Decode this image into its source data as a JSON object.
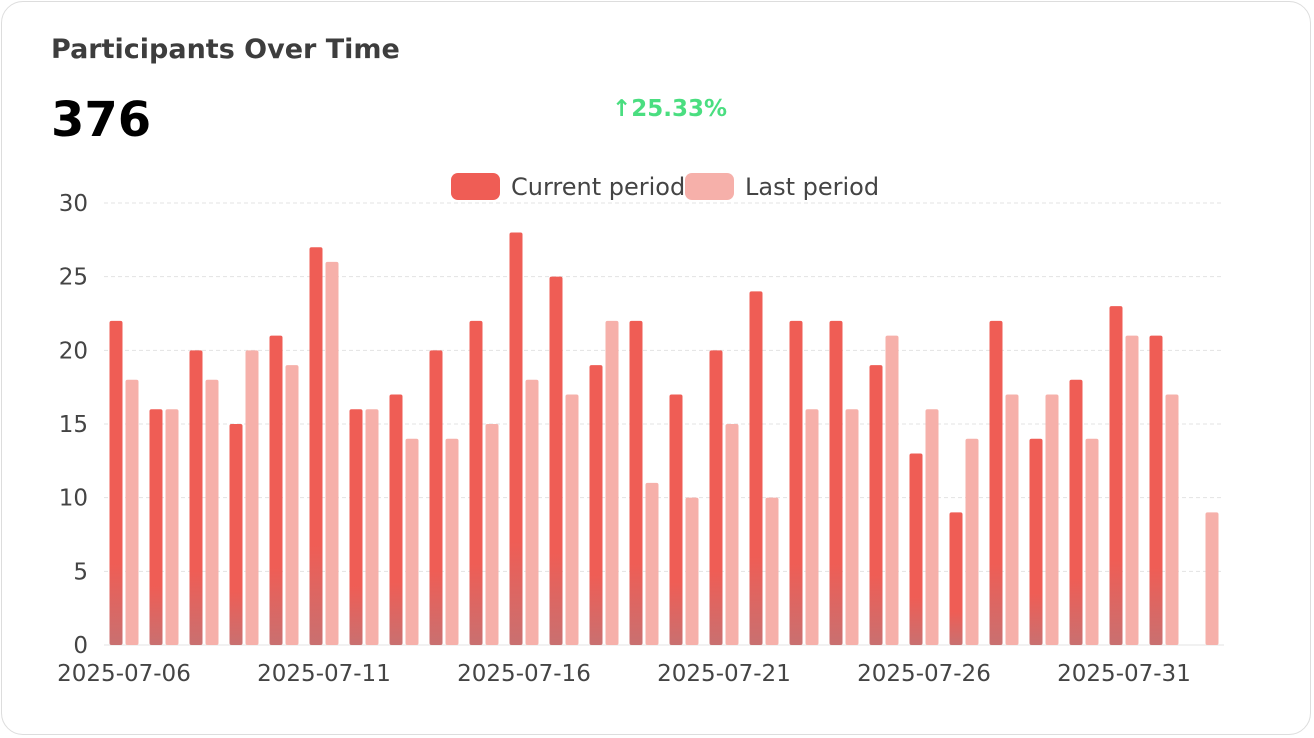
{
  "card": {
    "title": "Participants Over Time",
    "total": "376",
    "change": "↑25.33%",
    "change_color": "#4ade80"
  },
  "chart_data": {
    "type": "bar",
    "title": "Participants Over Time",
    "legend_position": "top",
    "grid": true,
    "ylim": [
      0,
      30
    ],
    "yticks": [
      0,
      5,
      10,
      15,
      20,
      25,
      30
    ],
    "xticks": [
      "2025-07-06",
      "2025-07-11",
      "2025-07-16",
      "2025-07-21",
      "2025-07-26",
      "2025-07-31"
    ],
    "categories": [
      "2025-07-06",
      "2025-07-07",
      "2025-07-08",
      "2025-07-09",
      "2025-07-10",
      "2025-07-11",
      "2025-07-12",
      "2025-07-13",
      "2025-07-14",
      "2025-07-15",
      "2025-07-16",
      "2025-07-17",
      "2025-07-18",
      "2025-07-19",
      "2025-07-20",
      "2025-07-21",
      "2025-07-22",
      "2025-07-23",
      "2025-07-24",
      "2025-07-25",
      "2025-07-26",
      "2025-07-27",
      "2025-07-28",
      "2025-07-29",
      "2025-07-30",
      "2025-07-31",
      "2025-08-01",
      "2025-08-02"
    ],
    "series": [
      {
        "name": "Current period",
        "color": "#ef5d55",
        "values": [
          22,
          16,
          20,
          15,
          21,
          27,
          16,
          17,
          20,
          22,
          28,
          25,
          19,
          22,
          17,
          20,
          24,
          22,
          22,
          19,
          13,
          9,
          22,
          14,
          18,
          23,
          21,
          null
        ]
      },
      {
        "name": "Last period",
        "color": "#f6b0aa",
        "values": [
          18,
          16,
          18,
          20,
          19,
          26,
          16,
          14,
          14,
          15,
          18,
          17,
          22,
          11,
          10,
          15,
          10,
          16,
          16,
          21,
          16,
          14,
          17,
          17,
          14,
          21,
          17,
          9
        ]
      }
    ]
  }
}
